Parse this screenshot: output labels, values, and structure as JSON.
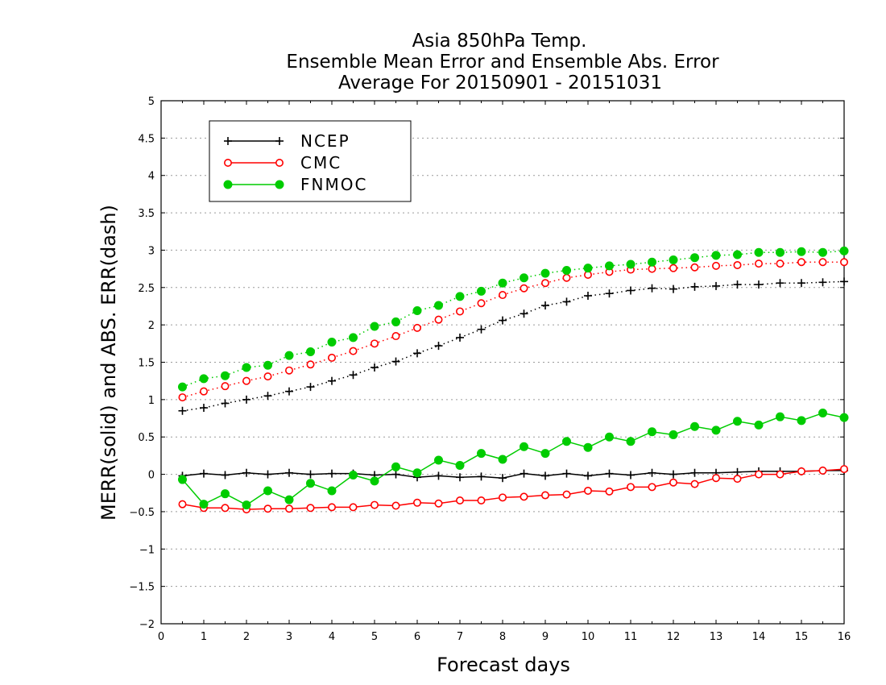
{
  "chart_data": {
    "type": "line",
    "title_lines": [
      "Asia 850hPa Temp.",
      "Ensemble Mean Error and Ensemble Abs. Error",
      "Average For 20150901 - 20151031"
    ],
    "xlabel": "Forecast days",
    "ylabel": "MERR(solid) and ABS. ERR(dash)",
    "xlim": [
      0,
      16
    ],
    "ylim": [
      -2,
      5
    ],
    "xticks": [
      0,
      1,
      2,
      3,
      4,
      5,
      6,
      7,
      8,
      9,
      10,
      11,
      12,
      13,
      14,
      15,
      16
    ],
    "yticks": [
      -2,
      -1.5,
      -1,
      -0.5,
      0,
      0.5,
      1,
      1.5,
      2,
      2.5,
      3,
      3.5,
      4,
      4.5,
      5
    ],
    "grid": "horizontal dotted",
    "legend_placement": "top-left",
    "x": [
      0.5,
      1,
      1.5,
      2,
      2.5,
      3,
      3.5,
      4,
      4.5,
      5,
      5.5,
      6,
      6.5,
      7,
      7.5,
      8,
      8.5,
      9,
      9.5,
      10,
      10.5,
      11,
      11.5,
      12,
      12.5,
      13,
      13.5,
      14,
      14.5,
      15,
      15.5,
      16
    ],
    "series": [
      {
        "name": "NCEP",
        "color": "#000000",
        "marker": "plus",
        "mean_error": [
          -0.02,
          0.01,
          -0.01,
          0.02,
          0.0,
          0.02,
          0.0,
          0.01,
          0.01,
          -0.01,
          0.0,
          -0.04,
          -0.02,
          -0.04,
          -0.03,
          -0.05,
          0.01,
          -0.02,
          0.01,
          -0.02,
          0.01,
          -0.01,
          0.02,
          0.0,
          0.02,
          0.02,
          0.03,
          0.04,
          0.04,
          0.04,
          0.05,
          0.05
        ],
        "abs_error": [
          0.85,
          0.89,
          0.95,
          1.0,
          1.05,
          1.11,
          1.17,
          1.25,
          1.33,
          1.43,
          1.51,
          1.62,
          1.72,
          1.83,
          1.94,
          2.06,
          2.15,
          2.26,
          2.31,
          2.39,
          2.42,
          2.46,
          2.49,
          2.48,
          2.51,
          2.52,
          2.54,
          2.54,
          2.56,
          2.56,
          2.57,
          2.58
        ]
      },
      {
        "name": "CMC",
        "color": "#ff0000",
        "marker": "open-circle",
        "mean_error": [
          -0.4,
          -0.45,
          -0.45,
          -0.47,
          -0.46,
          -0.46,
          -0.45,
          -0.44,
          -0.44,
          -0.41,
          -0.42,
          -0.38,
          -0.39,
          -0.35,
          -0.35,
          -0.31,
          -0.3,
          -0.28,
          -0.27,
          -0.22,
          -0.23,
          -0.17,
          -0.17,
          -0.11,
          -0.13,
          -0.05,
          -0.06,
          0.0,
          0.0,
          0.04,
          0.05,
          0.07
        ],
        "abs_error": [
          1.03,
          1.11,
          1.18,
          1.25,
          1.31,
          1.39,
          1.47,
          1.56,
          1.65,
          1.75,
          1.85,
          1.96,
          2.07,
          2.18,
          2.29,
          2.4,
          2.49,
          2.56,
          2.63,
          2.67,
          2.71,
          2.74,
          2.75,
          2.76,
          2.77,
          2.79,
          2.8,
          2.82,
          2.82,
          2.84,
          2.84,
          2.84
        ]
      },
      {
        "name": "FNMOC",
        "color": "#00cc00",
        "marker": "filled-circle",
        "mean_error": [
          -0.07,
          -0.4,
          -0.26,
          -0.41,
          -0.22,
          -0.34,
          -0.12,
          -0.22,
          -0.01,
          -0.09,
          0.1,
          0.02,
          0.19,
          0.12,
          0.28,
          0.2,
          0.37,
          0.28,
          0.44,
          0.36,
          0.5,
          0.44,
          0.57,
          0.53,
          0.64,
          0.59,
          0.71,
          0.66,
          0.77,
          0.72,
          0.82,
          0.76
        ],
        "abs_error": [
          1.17,
          1.28,
          1.32,
          1.43,
          1.46,
          1.59,
          1.64,
          1.77,
          1.83,
          1.98,
          2.04,
          2.19,
          2.26,
          2.38,
          2.45,
          2.56,
          2.63,
          2.69,
          2.73,
          2.76,
          2.79,
          2.81,
          2.84,
          2.87,
          2.9,
          2.93,
          2.94,
          2.97,
          2.97,
          2.98,
          2.97,
          2.99
        ]
      }
    ]
  }
}
